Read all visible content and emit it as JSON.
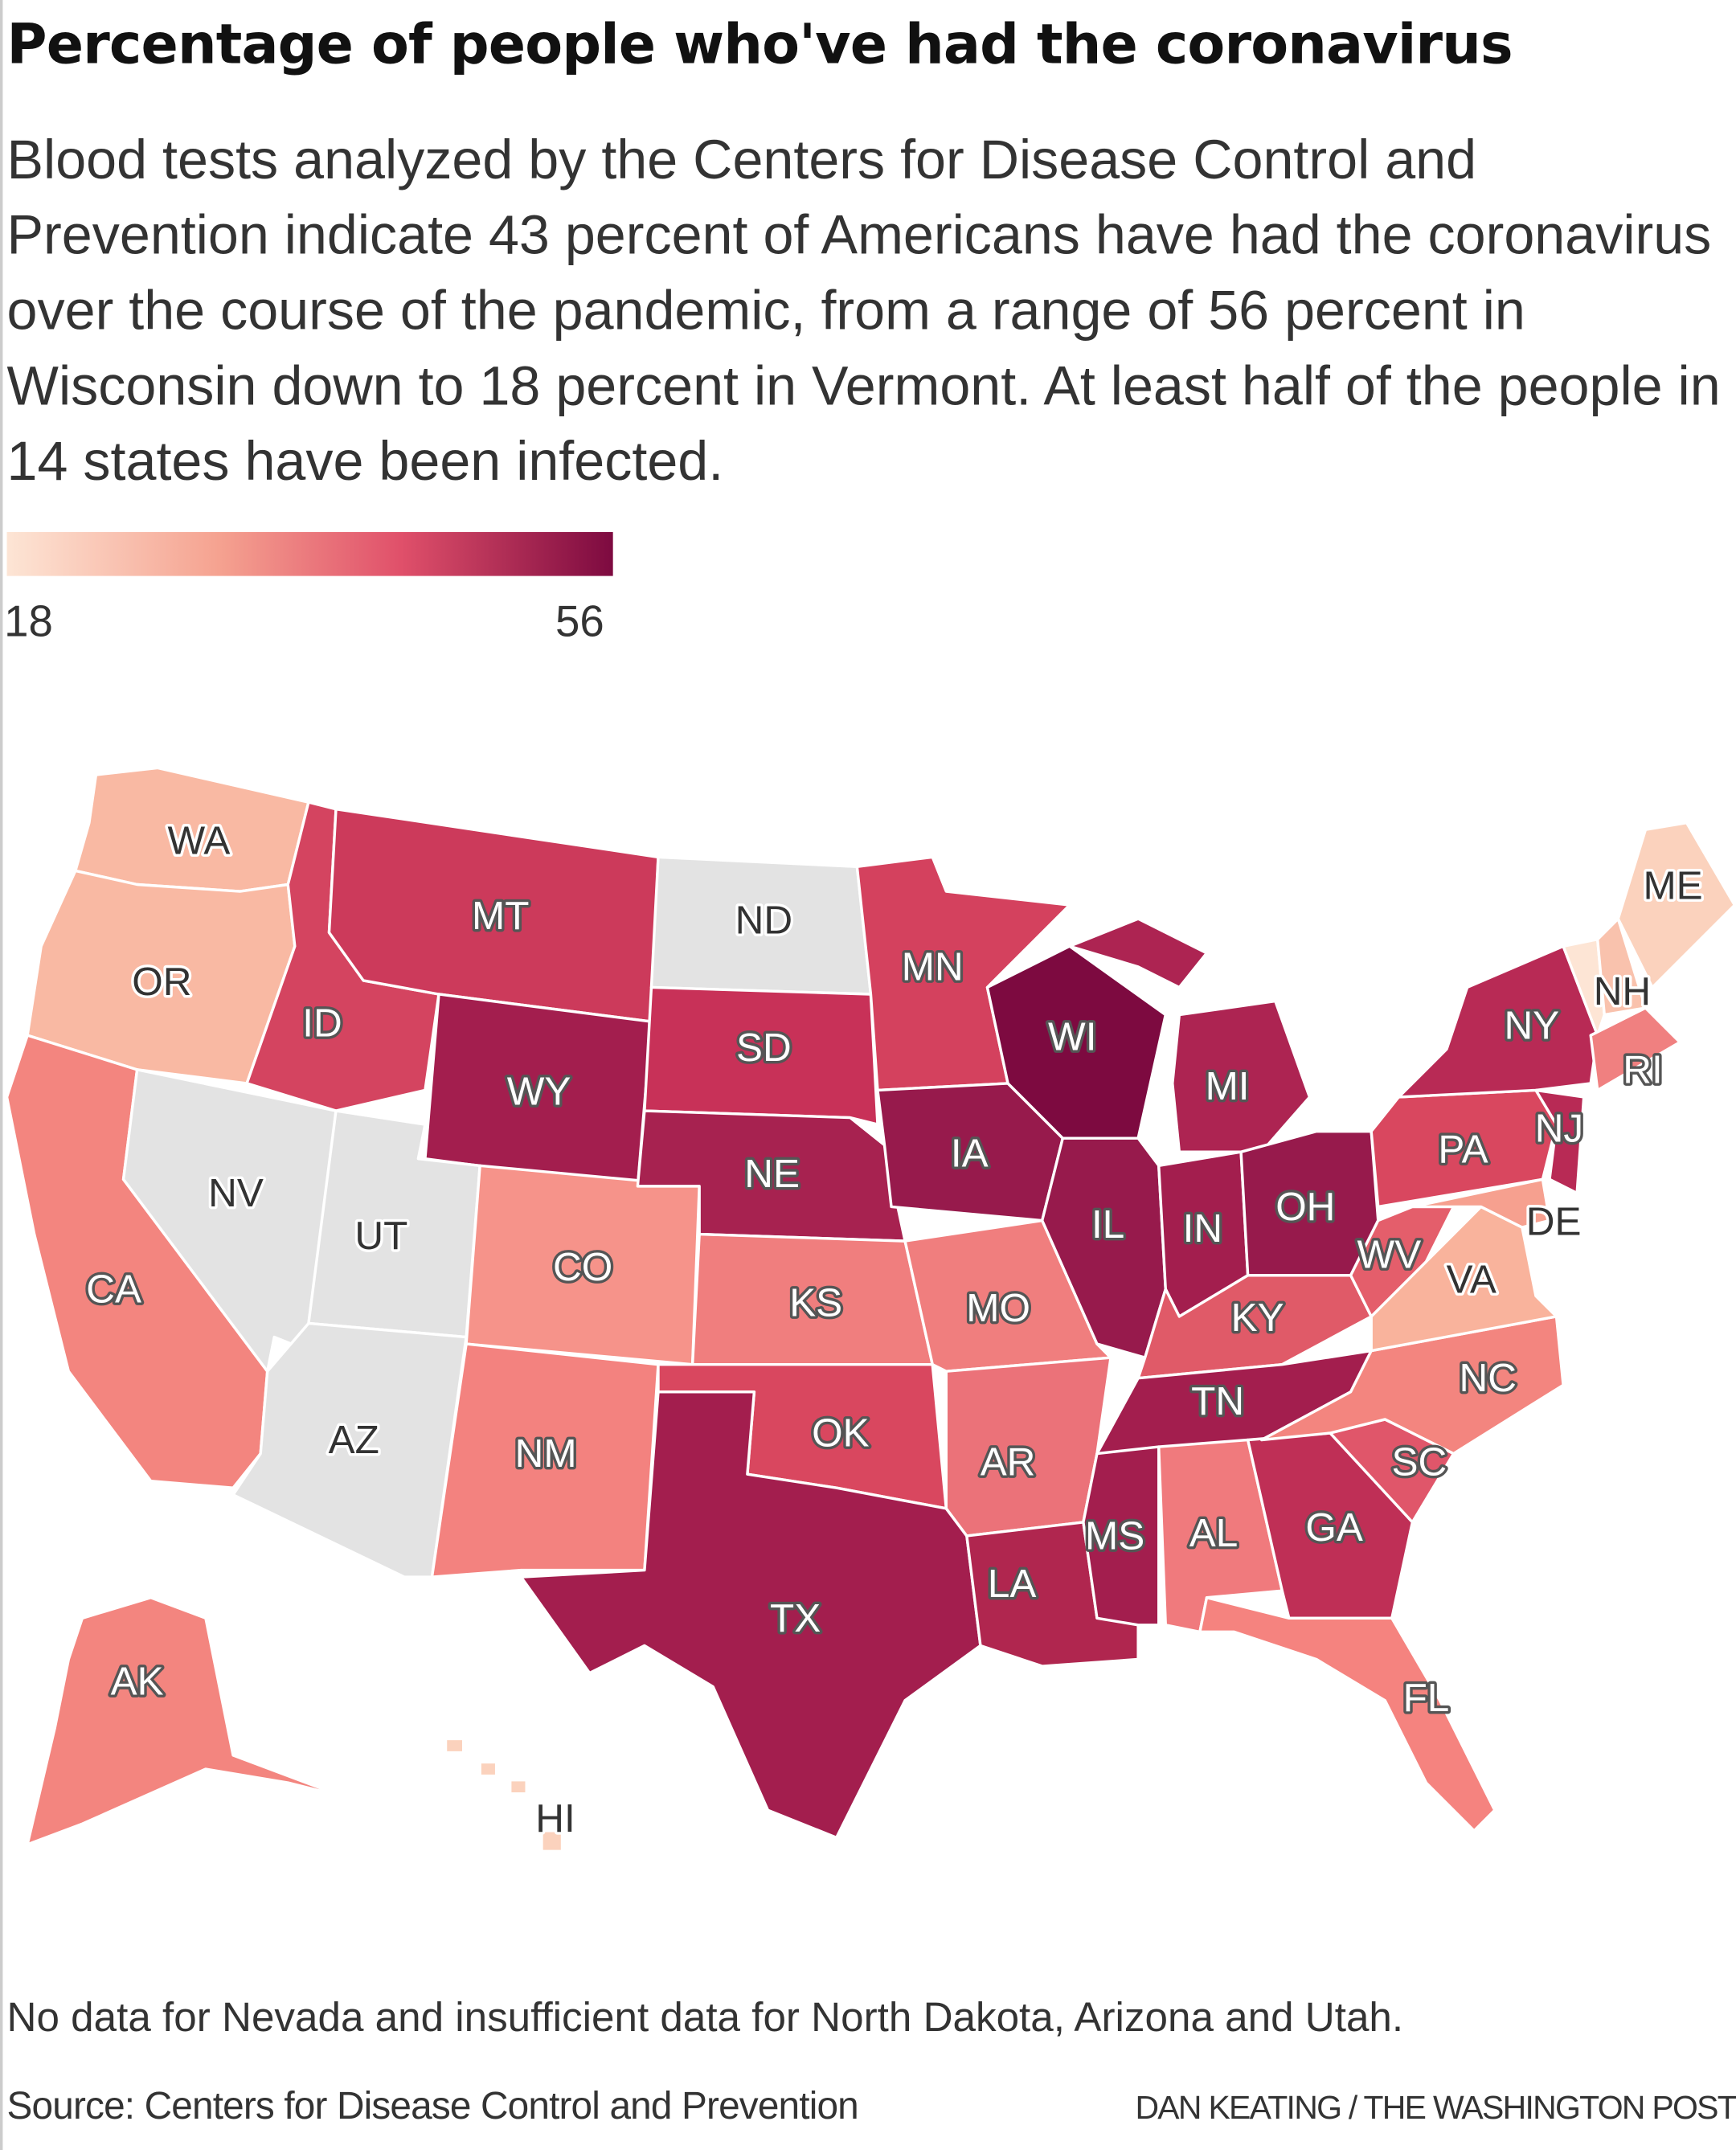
{
  "title": "Percentage of people who've had the coronavirus",
  "description": "Blood tests analyzed by the Centers for Disease Control and Prevention indicate 43 percent of Americans have had the coronavirus over the course of the pandemic, from a range of 56 percent in Wisconsin down to 18 percent in Vermont. At least half of the people in 14 states have been infected.",
  "legend": {
    "min": "18",
    "max": "56",
    "min_color": "#fde5d5",
    "max_color": "#7d0a40"
  },
  "no_data_color": "#e3e3e3",
  "states": [
    {
      "code": "WA",
      "color": "#f9b9a3"
    },
    {
      "code": "OR",
      "color": "#f9b9a3"
    },
    {
      "code": "CA",
      "color": "#f3857f"
    },
    {
      "code": "NV",
      "color": "#e3e3e3"
    },
    {
      "code": "ID",
      "color": "#d44460"
    },
    {
      "code": "MT",
      "color": "#cc3a5b"
    },
    {
      "code": "WY",
      "color": "#a31e4e"
    },
    {
      "code": "UT",
      "color": "#e3e3e3"
    },
    {
      "code": "AZ",
      "color": "#e3e3e3"
    },
    {
      "code": "CO",
      "color": "#f6938a"
    },
    {
      "code": "NM",
      "color": "#f3827f"
    },
    {
      "code": "ND",
      "color": "#e3e3e3"
    },
    {
      "code": "SD",
      "color": "#c83158"
    },
    {
      "code": "NE",
      "color": "#a72250"
    },
    {
      "code": "KS",
      "color": "#f07e7e"
    },
    {
      "code": "OK",
      "color": "#d9475f"
    },
    {
      "code": "TX",
      "color": "#a31e4e"
    },
    {
      "code": "MN",
      "color": "#d4415e"
    },
    {
      "code": "IA",
      "color": "#971a4c"
    },
    {
      "code": "MO",
      "color": "#f07e7e"
    },
    {
      "code": "AR",
      "color": "#eb7279"
    },
    {
      "code": "LA",
      "color": "#b0264f"
    },
    {
      "code": "WI",
      "color": "#7d0a40"
    },
    {
      "code": "IL",
      "color": "#971a4c"
    },
    {
      "code": "MI",
      "color": "#ad2452"
    },
    {
      "code": "IN",
      "color": "#a31e4e"
    },
    {
      "code": "OH",
      "color": "#971a4c"
    },
    {
      "code": "KY",
      "color": "#e05a68"
    },
    {
      "code": "TN",
      "color": "#a31e4e"
    },
    {
      "code": "MS",
      "color": "#a31e4e"
    },
    {
      "code": "AL",
      "color": "#f07a7d"
    },
    {
      "code": "GA",
      "color": "#bf2f56"
    },
    {
      "code": "FL",
      "color": "#f5837f"
    },
    {
      "code": "SC",
      "color": "#e0566a"
    },
    {
      "code": "NC",
      "color": "#f3857f"
    },
    {
      "code": "VA",
      "color": "#f9b39c"
    },
    {
      "code": "WV",
      "color": "#e45e6b"
    },
    {
      "code": "PA",
      "color": "#d9475f"
    },
    {
      "code": "NY",
      "color": "#b82a55"
    },
    {
      "code": "NJ",
      "color": "#b82a55"
    },
    {
      "code": "DE",
      "color": "#f6a08f"
    },
    {
      "code": "VT",
      "color": "#fde5d5"
    },
    {
      "code": "NH",
      "color": "#f9c2ad"
    },
    {
      "code": "ME",
      "color": "#fbd2bd"
    },
    {
      "code": "RI",
      "color": "#f08080"
    },
    {
      "code": "AK",
      "color": "#f3857f"
    },
    {
      "code": "HI",
      "color": "#fbd2bd"
    }
  ],
  "note": "No data for Nevada and insufficient data for North Dakota, Arizona and Utah.",
  "source": "Source: Centers for Disease Control and Prevention",
  "credit": "DAN KEATING / THE WASHINGTON POST"
}
